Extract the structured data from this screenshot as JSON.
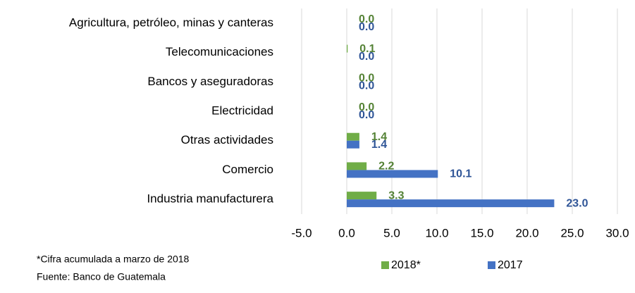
{
  "chart_data": {
    "type": "bar",
    "orientation": "horizontal",
    "categories": [
      "Agricultura, petróleo, minas y canteras",
      "Telecomunicaciones",
      "Bancos y aseguradoras",
      "Electricidad",
      "Otras actividades",
      "Comercio",
      "Industria manufacturera"
    ],
    "series": [
      {
        "name": "2018*",
        "color": "#70ad47",
        "values": [
          0,
          0.1,
          0,
          0,
          1.4,
          2.2,
          3.3
        ],
        "value_labels": [
          "0.0",
          "0.1",
          "0.0",
          "0.0",
          "1.4",
          "2.2",
          "3.3"
        ],
        "label_color": "#548235"
      },
      {
        "name": "2017",
        "color": "#4472c4",
        "values": [
          0,
          0,
          0,
          0,
          1.4,
          10.1,
          23
        ],
        "value_labels": [
          "0.0",
          "0.0",
          "0.0",
          "0.0",
          "1.4",
          "10.1",
          "23.0"
        ],
        "label_color": "#2f5597"
      }
    ],
    "xlim": [
      -5,
      30
    ],
    "xticks": [
      {
        "value": -5,
        "label": "-5.0"
      },
      {
        "value": 0,
        "label": "0.0"
      },
      {
        "value": 5,
        "label": "5.0"
      },
      {
        "value": 10,
        "label": "10.0"
      },
      {
        "value": 15,
        "label": "15.0"
      },
      {
        "value": 20,
        "label": "20.0"
      },
      {
        "value": 25,
        "label": "25.0"
      },
      {
        "value": 30,
        "label": "30.0"
      }
    ],
    "grid": true,
    "legend": "bottom",
    "notes": [
      "*Cifra acumulada a marzo de 2018",
      "Fuente: Banco de Guatemala"
    ]
  }
}
